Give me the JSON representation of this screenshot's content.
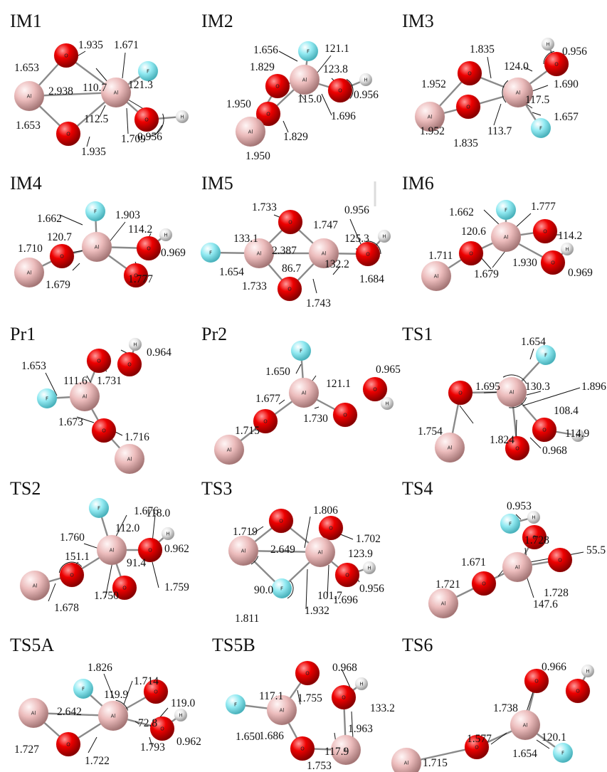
{
  "colors": {
    "Al": "#e8b9b9",
    "O": "#e00000",
    "F": "#8fe8f0",
    "H": "#e6e6e6"
  },
  "atom_labels": {
    "Al": "Al",
    "O": "O",
    "F": "F",
    "H": "H"
  },
  "structures": [
    {
      "id": "IM1",
      "title": "IM1",
      "values": [
        "1.935",
        "1.671",
        "1.653",
        "110.7",
        "2.938",
        "121.3",
        "1.653",
        "112.5",
        "1.935",
        "1.709",
        "0.956"
      ]
    },
    {
      "id": "IM2",
      "title": "IM2",
      "values": [
        "1.656",
        "121.1",
        "1.829",
        "123.8",
        "0.956",
        "1.950",
        "115.0",
        "1.696",
        "1.829",
        "1.950"
      ]
    },
    {
      "id": "IM3",
      "title": "IM3",
      "values": [
        "1.835",
        "0.956",
        "1.952",
        "124.0",
        "1.690",
        "117.5",
        "113.7",
        "1.657",
        "1.952",
        "1.835"
      ]
    },
    {
      "id": "IM4",
      "title": "IM4",
      "values": [
        "1.662",
        "1.903",
        "120.7",
        "114.2",
        "1.710",
        "0.969",
        "1.679",
        "1.777"
      ]
    },
    {
      "id": "IM5",
      "title": "IM5",
      "values": [
        "1.733",
        "0.956",
        "133.1",
        "1.747",
        "125.3",
        "2.387",
        "1.654",
        "86.7",
        "132.2",
        "1.733",
        "1.684",
        "1.743"
      ]
    },
    {
      "id": "IM6",
      "title": "IM6",
      "values": [
        "1.662",
        "1.777",
        "120.6",
        "114.2",
        "1.711",
        "1.930",
        "0.969",
        "1.679"
      ]
    },
    {
      "id": "Pr1",
      "title": "Pr1",
      "values": [
        "0.964",
        "1.653",
        "111.6",
        "1.731",
        "1.673",
        "1.716"
      ]
    },
    {
      "id": "Pr2",
      "title": "Pr2",
      "values": [
        "0.965",
        "1.650",
        "121.1",
        "1.677",
        "1.730",
        "1.715"
      ]
    },
    {
      "id": "TS1",
      "title": "TS1",
      "values": [
        "1.654",
        "1.695",
        "130.3",
        "108.4",
        "1.896",
        "1.754",
        "1.824",
        "114.9",
        "0.968"
      ]
    },
    {
      "id": "TS2",
      "title": "TS2",
      "values": [
        "1.676",
        "118.0",
        "1.760",
        "112.0",
        "0.962",
        "151.1",
        "91.4",
        "1.750",
        "1.759",
        "1.678"
      ]
    },
    {
      "id": "TS3",
      "title": "TS3",
      "values": [
        "1.806",
        "1.719",
        "1.702",
        "2.649",
        "123.9",
        "90.0",
        "101.7",
        "1.811",
        "0.956",
        "1.696",
        "1.932"
      ]
    },
    {
      "id": "TS4",
      "title": "TS4",
      "values": [
        "0.953",
        "1.728",
        "55.5",
        "1.671",
        "1.721",
        "147.6",
        "1.728"
      ]
    },
    {
      "id": "TS5A",
      "title": "TS5A",
      "values": [
        "1.826",
        "1.714",
        "119.9",
        "119.0",
        "2.642",
        "72.8",
        "1.727",
        "1.793",
        "0.962",
        "1.722"
      ]
    },
    {
      "id": "TS5B",
      "title": "TS5B",
      "values": [
        "0.968",
        "117.1",
        "1.755",
        "133.2",
        "1.650",
        "1.963",
        "1.686",
        "117.9",
        "1.753"
      ]
    },
    {
      "id": "TS6",
      "title": "TS6",
      "values": [
        "0.966",
        "1.738",
        "120.1",
        "1.577",
        "1.715",
        "1.654"
      ]
    }
  ]
}
